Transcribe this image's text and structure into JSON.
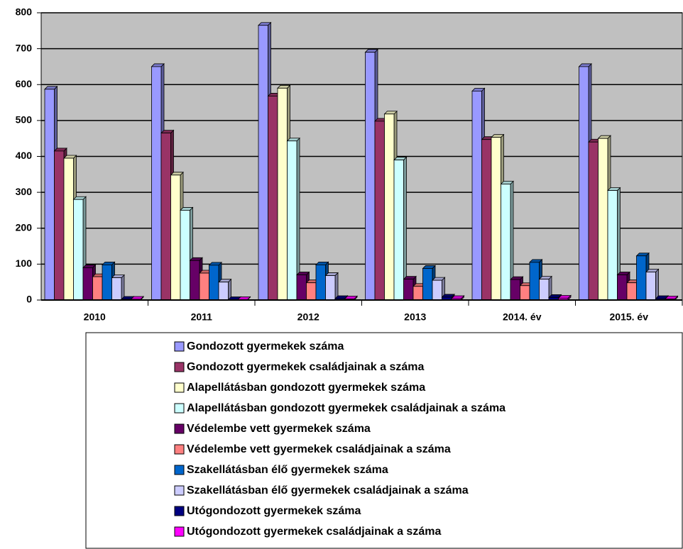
{
  "chart_data": {
    "type": "bar3d",
    "categories": [
      "2010",
      "2011",
      "2012",
      "2013",
      "2014. év",
      "2015. év"
    ],
    "series": [
      {
        "name": "Gondozott gyermekek száma",
        "color": "#9999ff",
        "values": [
          587,
          650,
          765,
          690,
          582,
          650
        ]
      },
      {
        "name": "Gondozott gyermekek családjainak a száma",
        "color": "#993366",
        "values": [
          415,
          465,
          568,
          498,
          447,
          440
        ]
      },
      {
        "name": "Alapellátásban gondozott gyermekek száma",
        "color": "#ffffcc",
        "values": [
          395,
          348,
          590,
          518,
          453,
          450
        ]
      },
      {
        "name": "Alapellátásban gondozott gyermekek családjainak a száma",
        "color": "#ccffff",
        "values": [
          280,
          250,
          443,
          390,
          323,
          305
        ]
      },
      {
        "name": "Védelembe vett gyermekek száma",
        "color": "#660066",
        "values": [
          90,
          110,
          70,
          58,
          57,
          70
        ]
      },
      {
        "name": "Védelembe vett gyermekek családjainak a száma",
        "color": "#ff8080",
        "values": [
          65,
          75,
          48,
          38,
          40,
          48
        ]
      },
      {
        "name": "Szakellátásban élő gyermekek száma",
        "color": "#0066cc",
        "values": [
          98,
          97,
          98,
          88,
          105,
          123
        ]
      },
      {
        "name": "Szakellátásban élő gyermekek családjainak a száma",
        "color": "#ccccff",
        "values": [
          62,
          50,
          68,
          55,
          58,
          78
        ]
      },
      {
        "name": "Utógondozott gyermekek száma",
        "color": "#000080",
        "values": [
          2,
          1,
          4,
          8,
          7,
          4
        ]
      },
      {
        "name": "Utógondozott gyermekek családjainak a száma",
        "color": "#ff00ff",
        "values": [
          2,
          1,
          3,
          4,
          5,
          3
        ]
      }
    ],
    "ylim": [
      0,
      800
    ],
    "yticks": [
      0,
      100,
      200,
      300,
      400,
      500,
      600,
      700,
      800
    ],
    "grid": true
  }
}
